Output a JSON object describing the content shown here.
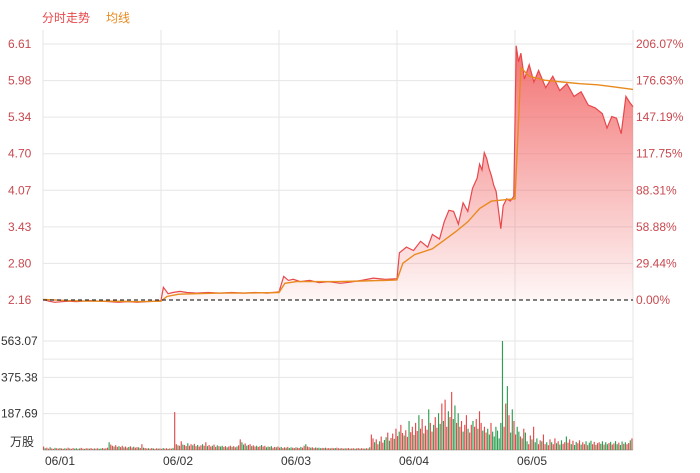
{
  "legend": {
    "price_label": "分时走势",
    "avg_label": "均线"
  },
  "colors": {
    "price_line": "#e8474b",
    "avg_line": "#e88a1e",
    "area_top": "#f26a6a",
    "up_bar": "#e34b4b",
    "down_bar": "#2f9e52",
    "grid": "#e6e6e6",
    "baseline": "#333333"
  },
  "chart_data": [
    {
      "type": "line",
      "title": "",
      "x": [
        "06/01",
        "06/02",
        "06/03",
        "06/04",
        "06/05"
      ],
      "ylim": [
        2.16,
        6.61
      ],
      "y_ticks": [
        "6.61",
        "5.98",
        "5.34",
        "4.70",
        "4.07",
        "3.43",
        "2.80",
        "2.16"
      ],
      "y_ticks_right": [
        "206.07%",
        "176.63%",
        "147.19%",
        "117.75%",
        "88.31%",
        "58.88%",
        "29.44%",
        "0.00%"
      ],
      "reference_price": 2.16,
      "series": [
        {
          "name": "分时走势",
          "points": [
            [
              0.0,
              2.17
            ],
            [
              0.05,
              2.14
            ],
            [
              0.1,
              2.12
            ],
            [
              0.16,
              2.13
            ],
            [
              0.22,
              2.14
            ],
            [
              0.28,
              2.13
            ],
            [
              0.34,
              2.14
            ],
            [
              0.4,
              2.15
            ],
            [
              0.48,
              2.14
            ],
            [
              0.56,
              2.13
            ],
            [
              0.64,
              2.12
            ],
            [
              0.72,
              2.13
            ],
            [
              0.8,
              2.12
            ],
            [
              0.88,
              2.13
            ],
            [
              0.96,
              2.14
            ],
            [
              1.0,
              2.15
            ],
            [
              1.02,
              2.38
            ],
            [
              1.06,
              2.27
            ],
            [
              1.1,
              2.29
            ],
            [
              1.16,
              2.31
            ],
            [
              1.22,
              2.29
            ],
            [
              1.3,
              2.28
            ],
            [
              1.4,
              2.29
            ],
            [
              1.5,
              2.28
            ],
            [
              1.6,
              2.29
            ],
            [
              1.7,
              2.28
            ],
            [
              1.8,
              2.29
            ],
            [
              1.9,
              2.28
            ],
            [
              2.0,
              2.3
            ],
            [
              2.04,
              2.57
            ],
            [
              2.08,
              2.5
            ],
            [
              2.12,
              2.52
            ],
            [
              2.18,
              2.48
            ],
            [
              2.26,
              2.5
            ],
            [
              2.34,
              2.46
            ],
            [
              2.42,
              2.48
            ],
            [
              2.52,
              2.45
            ],
            [
              2.6,
              2.47
            ],
            [
              2.7,
              2.5
            ],
            [
              2.8,
              2.54
            ],
            [
              2.9,
              2.52
            ],
            [
              3.0,
              2.53
            ],
            [
              3.02,
              2.98
            ],
            [
              3.08,
              3.08
            ],
            [
              3.14,
              3.02
            ],
            [
              3.2,
              3.18
            ],
            [
              3.26,
              3.08
            ],
            [
              3.3,
              3.3
            ],
            [
              3.36,
              3.22
            ],
            [
              3.4,
              3.52
            ],
            [
              3.44,
              3.72
            ],
            [
              3.48,
              3.7
            ],
            [
              3.52,
              3.48
            ],
            [
              3.56,
              3.85
            ],
            [
              3.6,
              3.7
            ],
            [
              3.64,
              4.1
            ],
            [
              3.68,
              4.28
            ],
            [
              3.7,
              4.52
            ],
            [
              3.72,
              4.42
            ],
            [
              3.74,
              4.72
            ],
            [
              3.76,
              4.62
            ],
            [
              3.78,
              4.45
            ],
            [
              3.8,
              4.32
            ],
            [
              3.82,
              4.15
            ],
            [
              3.84,
              4.05
            ],
            [
              3.86,
              3.72
            ],
            [
              3.88,
              3.4
            ],
            [
              3.9,
              3.8
            ],
            [
              3.93,
              3.92
            ],
            [
              3.96,
              3.88
            ],
            [
              3.99,
              3.96
            ],
            [
              4.01,
              6.58
            ],
            [
              4.03,
              6.3
            ],
            [
              4.05,
              6.45
            ],
            [
              4.08,
              6.0
            ],
            [
              4.12,
              6.25
            ],
            [
              4.16,
              5.95
            ],
            [
              4.2,
              6.15
            ],
            [
              4.26,
              5.85
            ],
            [
              4.32,
              6.05
            ],
            [
              4.38,
              5.8
            ],
            [
              4.44,
              5.92
            ],
            [
              4.5,
              5.7
            ],
            [
              4.56,
              5.78
            ],
            [
              4.62,
              5.55
            ],
            [
              4.68,
              5.5
            ],
            [
              4.74,
              5.4
            ],
            [
              4.78,
              5.15
            ],
            [
              4.82,
              5.35
            ],
            [
              4.86,
              5.32
            ],
            [
              4.9,
              5.05
            ],
            [
              4.94,
              5.7
            ],
            [
              4.97,
              5.6
            ],
            [
              5.0,
              5.52
            ]
          ]
        },
        {
          "name": "均线",
          "points": [
            [
              0.0,
              2.17
            ],
            [
              0.2,
              2.15
            ],
            [
              0.4,
              2.14
            ],
            [
              0.6,
              2.14
            ],
            [
              0.8,
              2.13
            ],
            [
              1.0,
              2.14
            ],
            [
              1.05,
              2.22
            ],
            [
              1.15,
              2.26
            ],
            [
              1.3,
              2.27
            ],
            [
              1.5,
              2.28
            ],
            [
              1.7,
              2.28
            ],
            [
              2.0,
              2.29
            ],
            [
              2.05,
              2.45
            ],
            [
              2.15,
              2.48
            ],
            [
              2.3,
              2.48
            ],
            [
              2.5,
              2.48
            ],
            [
              2.7,
              2.49
            ],
            [
              2.9,
              2.5
            ],
            [
              3.0,
              2.51
            ],
            [
              3.05,
              2.8
            ],
            [
              3.15,
              2.95
            ],
            [
              3.3,
              3.05
            ],
            [
              3.4,
              3.2
            ],
            [
              3.5,
              3.35
            ],
            [
              3.6,
              3.52
            ],
            [
              3.7,
              3.75
            ],
            [
              3.8,
              3.88
            ],
            [
              3.9,
              3.9
            ],
            [
              4.0,
              3.92
            ],
            [
              4.05,
              6.2
            ],
            [
              4.12,
              6.05
            ],
            [
              4.25,
              5.98
            ],
            [
              4.4,
              5.95
            ],
            [
              4.55,
              5.92
            ],
            [
              4.7,
              5.9
            ],
            [
              4.85,
              5.86
            ],
            [
              5.0,
              5.82
            ]
          ]
        }
      ]
    },
    {
      "type": "bar",
      "title": "",
      "ylabel": "万股",
      "ylim": [
        0,
        563.07
      ],
      "y_ticks": [
        "563.07",
        "375.38",
        "187.69"
      ],
      "series": [
        {
          "name": "",
          "values": [
            18,
            9,
            12,
            7,
            14,
            8,
            6,
            11,
            9,
            7,
            10,
            8,
            6,
            9,
            7,
            12,
            8,
            6,
            10,
            7,
            9,
            6,
            8,
            11,
            7,
            6,
            9,
            8,
            7,
            10,
            6,
            8,
            7,
            9,
            6,
            8,
            10,
            7,
            9,
            12,
            40,
            28,
            22,
            18,
            25,
            16,
            20,
            15,
            22,
            14,
            18,
            12,
            16,
            19,
            13,
            17,
            12,
            15,
            14,
            10,
            30,
            12,
            10,
            8,
            9,
            7,
            10,
            8,
            6,
            9,
            7,
            8,
            6,
            10,
            7,
            9,
            6,
            8,
            7,
            11,
            196,
            30,
            24,
            22,
            45,
            28,
            26,
            20,
            35,
            22,
            30,
            24,
            32,
            20,
            26,
            18,
            24,
            30,
            22,
            40,
            20,
            26,
            18,
            22,
            28,
            16,
            24,
            20,
            18,
            22,
            16,
            20,
            14,
            18,
            22,
            16,
            20,
            14,
            18,
            24,
            55,
            40,
            28,
            34,
            22,
            26,
            30,
            20,
            24,
            18,
            22,
            16,
            20,
            26,
            18,
            22,
            14,
            18,
            16,
            20,
            12,
            16,
            14,
            18,
            12,
            16,
            10,
            14,
            12,
            16,
            10,
            14,
            12,
            10,
            14,
            12,
            10,
            16,
            12,
            22,
            30,
            18,
            15,
            12,
            14,
            10,
            13,
            11,
            12,
            9,
            11,
            10,
            12,
            9,
            10,
            8,
            11,
            9,
            10,
            12,
            9,
            8,
            10,
            7,
            9,
            8,
            10,
            7,
            8,
            9,
            7,
            8,
            10,
            7,
            9,
            8,
            7,
            9,
            8,
            14,
            80,
            60,
            40,
            55,
            30,
            45,
            70,
            38,
            52,
            66,
            90,
            48,
            62,
            85,
            58,
            110,
            72,
            95,
            130,
            88,
            75,
            102,
            68,
            150,
            92,
            120,
            78,
            140,
            98,
            180,
            110,
            160,
            86,
            125,
            105,
            210,
            140,
            95,
            130,
            170,
            115,
            190,
            135,
            240,
            150,
            260,
            120,
            200,
            170,
            300,
            160,
            230,
            140,
            190,
            120,
            150,
            95,
            130,
            180,
            110,
            90,
            130,
            150,
            120,
            160,
            110,
            200,
            140,
            100,
            120,
            90,
            110,
            80,
            140,
            95,
            70,
            120,
            100,
            60,
            140,
            563,
            120,
            240,
            330,
            180,
            90,
            210,
            150,
            80,
            120,
            95,
            70,
            60,
            110,
            90,
            45,
            30,
            75,
            55,
            120,
            40,
            60,
            30,
            50,
            45,
            80,
            30,
            40,
            25,
            55,
            40,
            30,
            60,
            35,
            45,
            28,
            50,
            32,
            40,
            70,
            38,
            55,
            30,
            48,
            26,
            42,
            35,
            50,
            28,
            40,
            30,
            45,
            25,
            38,
            48,
            30,
            42,
            26,
            35,
            40,
            32,
            45,
            28,
            40,
            30,
            36,
            42,
            28,
            34,
            46,
            30,
            38,
            26,
            44,
            32,
            40,
            30,
            36,
            50,
            60
          ]
        }
      ]
    }
  ]
}
